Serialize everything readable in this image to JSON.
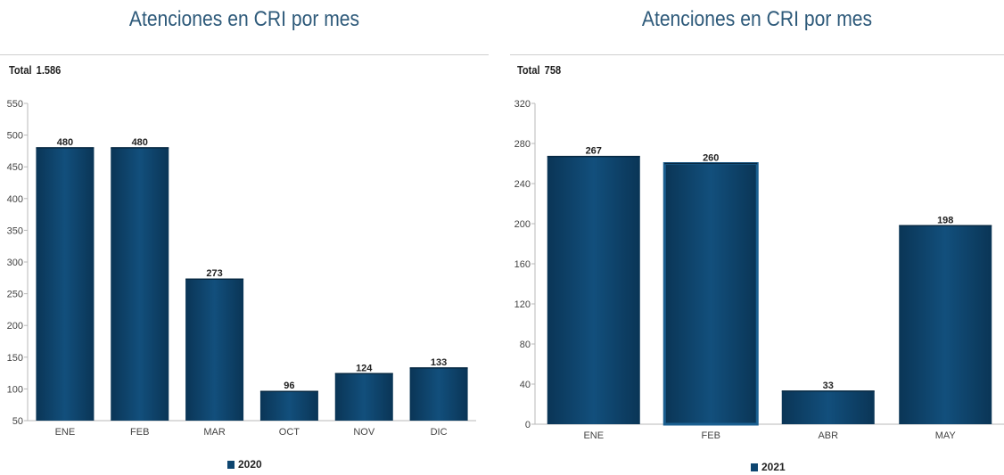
{
  "chart_data": [
    {
      "type": "bar",
      "title": "Atenciones en CRI por mes",
      "total_label": "Total",
      "total_value": "1.586",
      "categories": [
        "ENE",
        "FEB",
        "MAR",
        "OCT",
        "NOV",
        "DIC"
      ],
      "series": [
        {
          "name": "2020",
          "values": [
            480,
            480,
            273,
            96,
            124,
            133
          ]
        }
      ],
      "ylim": [
        50,
        550
      ],
      "yticks": [
        50,
        100,
        150,
        200,
        250,
        300,
        350,
        400,
        450,
        500,
        550
      ],
      "grid": false,
      "legend_position": "bottom-center",
      "colors": {
        "bar": "#0e4670",
        "bar_highlight": "#1a5f90"
      }
    },
    {
      "type": "bar",
      "title": "Atenciones en CRI por mes",
      "total_label": "Total",
      "total_value": "758",
      "categories": [
        "ENE",
        "FEB",
        "ABR",
        "MAY"
      ],
      "series": [
        {
          "name": "2021",
          "values": [
            267,
            260,
            33,
            198
          ]
        }
      ],
      "ylim": [
        0,
        320
      ],
      "yticks": [
        0,
        40,
        80,
        120,
        160,
        200,
        240,
        280,
        320
      ],
      "grid": false,
      "legend_position": "bottom-center",
      "highlighted_category": "FEB",
      "colors": {
        "bar": "#0e4670",
        "bar_highlight": "#1a5f90"
      }
    }
  ]
}
